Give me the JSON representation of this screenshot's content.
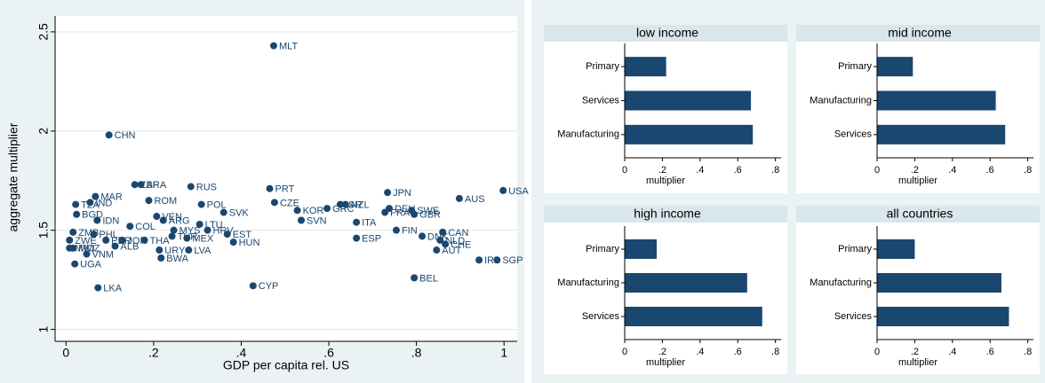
{
  "chart_data": [
    {
      "type": "scatter",
      "xlabel": "GDP per capita rel. US",
      "ylabel": "aggregate multiplier",
      "color": "#1a476f",
      "xlim": [
        -0.025,
        1.03
      ],
      "ylim": [
        0.94,
        2.58
      ],
      "xticks": [
        0,
        {
          "value": 0.2,
          "label": ".2"
        },
        {
          "value": 0.4,
          "label": ".4"
        },
        {
          "value": 0.6,
          "label": ".6"
        },
        {
          "value": 0.8,
          "label": ".8"
        },
        1
      ],
      "yticks": [
        1,
        1.5,
        2,
        2.5
      ],
      "labels": [
        "MLT",
        "CHN",
        "ZAF",
        "BRA",
        "RUS",
        "PRT",
        "JPN",
        "USA",
        "AUS",
        "CZE",
        "MAR",
        "TZA",
        "IND",
        "ROM",
        "POL",
        "KOR",
        "GRC",
        "ISR",
        "NZL",
        "DEU",
        "FRA",
        "SWE",
        "GBR",
        "BGD",
        "VEN",
        "SVK",
        "IDN",
        "SVN",
        "ITA",
        "ARG",
        "LTU",
        "COL",
        "HRV",
        "FIN",
        "CAN",
        "EST",
        "MYS",
        "ESP",
        "DNK",
        "THA",
        "PHL",
        "ZMB",
        "ZWE",
        "MWI",
        "MOZ",
        "VNM",
        "UGA",
        "LKA",
        "CYP",
        "BEL",
        "BWA",
        "URY",
        "LVA",
        "HUN",
        "MEX",
        "TUR",
        "NLD",
        "CHE",
        "AUT",
        "IRL",
        "SGP",
        "ALB",
        "PER",
        "JOR"
      ],
      "x": [
        0.474,
        0.098,
        0.157,
        0.171,
        0.285,
        0.465,
        0.734,
        0.998,
        0.898,
        0.476,
        0.067,
        0.022,
        0.055,
        0.189,
        0.309,
        0.528,
        0.596,
        0.626,
        0.638,
        0.738,
        0.728,
        0.789,
        0.795,
        0.024,
        0.207,
        0.36,
        0.071,
        0.537,
        0.663,
        0.222,
        0.305,
        0.146,
        0.323,
        0.754,
        0.86,
        0.368,
        0.246,
        0.663,
        0.813,
        0.179,
        0.063,
        0.016,
        0.008,
        0.008,
        0.016,
        0.047,
        0.02,
        0.073,
        0.427,
        0.795,
        0.217,
        0.213,
        0.28,
        0.382,
        0.276,
        0.242,
        0.854,
        0.866,
        0.846,
        0.943,
        0.984,
        0.112,
        0.091,
        0.128
      ],
      "y": [
        2.43,
        1.98,
        1.73,
        1.73,
        1.72,
        1.71,
        1.69,
        1.7,
        1.66,
        1.64,
        1.67,
        1.63,
        1.64,
        1.65,
        1.63,
        1.6,
        1.61,
        1.63,
        1.63,
        1.61,
        1.59,
        1.6,
        1.58,
        1.58,
        1.57,
        1.59,
        1.55,
        1.55,
        1.54,
        1.55,
        1.53,
        1.52,
        1.5,
        1.5,
        1.49,
        1.48,
        1.5,
        1.46,
        1.47,
        1.45,
        1.48,
        1.49,
        1.45,
        1.41,
        1.41,
        1.38,
        1.33,
        1.21,
        1.22,
        1.26,
        1.36,
        1.4,
        1.4,
        1.44,
        1.46,
        1.47,
        1.45,
        1.43,
        1.4,
        1.35,
        1.35,
        1.42,
        1.45,
        1.45
      ]
    },
    {
      "type": "bar",
      "title": "low income",
      "xlabel": "multiplier",
      "color": "#1a476f",
      "categories": [
        "Primary",
        "Services",
        "Manufacturing"
      ],
      "values": [
        0.22,
        0.67,
        0.68
      ],
      "xlim": [
        0,
        0.83
      ],
      "xticks": [
        0,
        {
          "value": 0.2,
          "label": ".2"
        },
        {
          "value": 0.4,
          "label": ".4"
        },
        {
          "value": 0.6,
          "label": ".6"
        },
        {
          "value": 0.8,
          "label": ".8"
        }
      ]
    },
    {
      "type": "bar",
      "title": "mid income",
      "xlabel": "multiplier",
      "color": "#1a476f",
      "categories": [
        "Primary",
        "Manufacturing",
        "Services"
      ],
      "values": [
        0.19,
        0.63,
        0.68
      ],
      "xlim": [
        0,
        0.83
      ],
      "xticks": [
        0,
        {
          "value": 0.2,
          "label": ".2"
        },
        {
          "value": 0.4,
          "label": ".4"
        },
        {
          "value": 0.6,
          "label": ".6"
        },
        {
          "value": 0.8,
          "label": ".8"
        }
      ]
    },
    {
      "type": "bar",
      "title": "high income",
      "xlabel": "multiplier",
      "color": "#1a476f",
      "categories": [
        "Primary",
        "Manufacturing",
        "Services"
      ],
      "values": [
        0.17,
        0.65,
        0.73
      ],
      "xlim": [
        0,
        0.83
      ],
      "xticks": [
        0,
        {
          "value": 0.2,
          "label": ".2"
        },
        {
          "value": 0.4,
          "label": ".4"
        },
        {
          "value": 0.6,
          "label": ".6"
        },
        {
          "value": 0.8,
          "label": ".8"
        }
      ]
    },
    {
      "type": "bar",
      "title": "all countries",
      "xlabel": "multiplier",
      "color": "#1a476f",
      "categories": [
        "Primary",
        "Manufacturing",
        "Services"
      ],
      "values": [
        0.2,
        0.66,
        0.7
      ],
      "xlim": [
        0,
        0.83
      ],
      "xticks": [
        0,
        {
          "value": 0.2,
          "label": ".2"
        },
        {
          "value": 0.4,
          "label": ".4"
        },
        {
          "value": 0.6,
          "label": ".6"
        },
        {
          "value": 0.8,
          "label": ".8"
        }
      ]
    }
  ]
}
